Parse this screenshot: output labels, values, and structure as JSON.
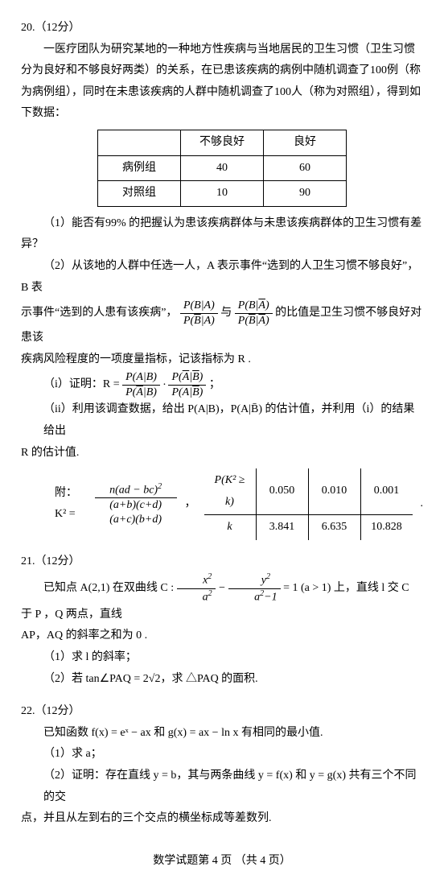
{
  "q20": {
    "head": "20.（12分）",
    "p1": "一医疗团队为研究某地的一种地方性疾病与当地居民的卫生习惯（卫生习惯分为良好和不够良好两类）的关系，在已患该疾病的病例中随机调查了100例（称为病例组），同时在未患该疾病的人群中随机调查了100人（称为对照组），得到如下数据：",
    "table": {
      "h1": "不够良好",
      "h2": "良好",
      "r1": "病例组",
      "v11": "40",
      "v12": "60",
      "r2": "对照组",
      "v21": "10",
      "v22": "90"
    },
    "p2": "（1）能否有99% 的把握认为患该疾病群体与未患该疾病群体的卫生习惯有差异？",
    "p3a": "（2）从该地的人群中任选一人，A 表示事件“选到的人卫生习惯不够良好”，B 表",
    "p3b_pre": "示事件“选到的人患有该疾病”，",
    "p3b_post": " 的比值是卫生习惯不够良好对患该",
    "p3c": "疾病风险程度的一项度量指标，记该指标为 R .",
    "p4pre": "（i）证明：R = ",
    "p5": "（ii）利用该调查数据，给出 P(A|B)，P(A|B̄) 的估计值，并利用（i）的结果给出",
    "p5b": "R 的估计值.",
    "ref_pre": "附：K² = ",
    "pk": {
      "h0": "P(K² ≥ k)",
      "h1": "0.050",
      "h2": "0.010",
      "h3": "0.001",
      "r0": "k",
      "v1": "3.841",
      "v2": "6.635",
      "v3": "10.828"
    }
  },
  "q21": {
    "head": "21.（12分）",
    "p1_pre": "已知点 A(2,1) 在双曲线 C : ",
    "p1_post": " = 1 (a > 1) 上，直线 l 交 C 于 P ，Q 两点，直线",
    "p1b": "AP，AQ 的斜率之和为 0 .",
    "p2": "（1）求 l 的斜率；",
    "p3": "（2）若 tan∠PAQ = 2√2，求 △PAQ 的面积."
  },
  "q22": {
    "head": "22.（12分）",
    "p1": "已知函数 f(x) = eˣ − ax 和 g(x) = ax − ln x 有相同的最小值.",
    "p2": "（1）求 a；",
    "p3": "（2）证明：存在直线 y = b，其与两条曲线 y = f(x) 和 y = g(x) 共有三个不同的交",
    "p3b": "点，并且从左到右的三个交点的横坐标成等差数列."
  },
  "footer": "数学试题第 4 页 （共 4 页）"
}
